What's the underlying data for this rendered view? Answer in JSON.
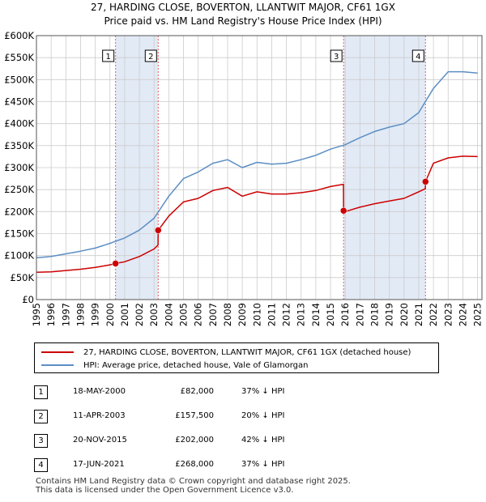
{
  "title": {
    "line1": "27, HARDING CLOSE, BOVERTON, LLANTWIT MAJOR, CF61 1GX",
    "line2": "Price paid vs. HM Land Registry's House Price Index (HPI)"
  },
  "colors": {
    "property": "#cc0000",
    "hpi": "#5b8ec4",
    "shade": "#dde6f4",
    "grid": "#cccccc",
    "vline": "#e06060"
  },
  "legend": {
    "property_label": "27, HARDING CLOSE, BOVERTON, LLANTWIT MAJOR, CF61 1GX (detached house)",
    "hpi_label": "HPI: Average price, detached house, Vale of Glamorgan"
  },
  "sales": [
    {
      "num": "1",
      "date": "18-MAY-2000",
      "price": "£82,000",
      "hpi": "37% ↓ HPI"
    },
    {
      "num": "2",
      "date": "11-APR-2003",
      "price": "£157,500",
      "hpi": "20% ↓ HPI"
    },
    {
      "num": "3",
      "date": "20-NOV-2015",
      "price": "£202,000",
      "hpi": "42% ↓ HPI"
    },
    {
      "num": "4",
      "date": "17-JUN-2021",
      "price": "£268,000",
      "hpi": "37% ↓ HPI"
    }
  ],
  "footer": {
    "line1": "Contains HM Land Registry data © Crown copyright and database right 2025.",
    "line2": "This data is licensed under the Open Government Licence v3.0."
  },
  "chart_data": {
    "type": "line",
    "title": "Price paid vs. HM Land Registry's House Price Index (HPI)",
    "xlim": [
      1995,
      2025.3
    ],
    "ylim": [
      0,
      600000
    ],
    "x_ticks": [
      1995,
      1996,
      1997,
      1998,
      1999,
      2000,
      2001,
      2002,
      2003,
      2004,
      2005,
      2006,
      2007,
      2008,
      2009,
      2010,
      2011,
      2012,
      2013,
      2014,
      2015,
      2016,
      2017,
      2018,
      2019,
      2020,
      2021,
      2022,
      2023,
      2024,
      2025
    ],
    "y_ticks": [
      0,
      50000,
      100000,
      150000,
      200000,
      250000,
      300000,
      350000,
      400000,
      450000,
      500000,
      550000,
      600000
    ],
    "y_tick_labels": [
      "£0",
      "£50K",
      "£100K",
      "£150K",
      "£200K",
      "£250K",
      "£300K",
      "£350K",
      "£400K",
      "£450K",
      "£500K",
      "£550K",
      "£600K"
    ],
    "shaded_periods": [
      [
        2000.38,
        2003.28
      ],
      [
        2015.89,
        2021.46
      ]
    ],
    "sale_markers": [
      {
        "label": "1",
        "x": 2000.38,
        "y": 82000
      },
      {
        "label": "2",
        "x": 2003.28,
        "y": 157500
      },
      {
        "label": "3",
        "x": 2015.89,
        "y": 202000
      },
      {
        "label": "4",
        "x": 2021.46,
        "y": 268000
      }
    ],
    "series": [
      {
        "name": "27, HARDING CLOSE, BOVERTON, LLANTWIT MAJOR, CF61 1GX (detached house)",
        "x": [
          1995,
          1996,
          1997,
          1998,
          1999,
          2000,
          2000.38,
          2001,
          2002,
          2003,
          2003.27,
          2003.28,
          2004,
          2005,
          2006,
          2007,
          2008,
          2009,
          2010,
          2011,
          2012,
          2013,
          2014,
          2015,
          2015.88,
          2015.89,
          2016,
          2017,
          2018,
          2019,
          2020,
          2021,
          2021.45,
          2021.46,
          2022,
          2023,
          2024,
          2025
        ],
        "y": [
          62000,
          63000,
          66000,
          69000,
          73000,
          79000,
          82000,
          86000,
          98000,
          115000,
          124000,
          157500,
          190000,
          222000,
          230000,
          248000,
          255000,
          235000,
          245000,
          240000,
          240000,
          243000,
          248000,
          257000,
          262000,
          202000,
          200000,
          210000,
          218000,
          224000,
          230000,
          245000,
          252000,
          268000,
          310000,
          322000,
          326000,
          325000
        ]
      },
      {
        "name": "HPI: Average price, detached house, Vale of Glamorgan",
        "x": [
          1995,
          1996,
          1997,
          1998,
          1999,
          2000,
          2001,
          2002,
          2003,
          2004,
          2005,
          2006,
          2007,
          2008,
          2009,
          2010,
          2011,
          2012,
          2013,
          2014,
          2015,
          2016,
          2017,
          2018,
          2019,
          2020,
          2021,
          2022,
          2023,
          2024,
          2025
        ],
        "y": [
          95000,
          98000,
          104000,
          110000,
          117000,
          128000,
          140000,
          158000,
          185000,
          235000,
          275000,
          290000,
          310000,
          318000,
          300000,
          312000,
          308000,
          310000,
          318000,
          328000,
          342000,
          352000,
          368000,
          382000,
          392000,
          400000,
          425000,
          480000,
          518000,
          518000,
          515000
        ]
      }
    ]
  }
}
